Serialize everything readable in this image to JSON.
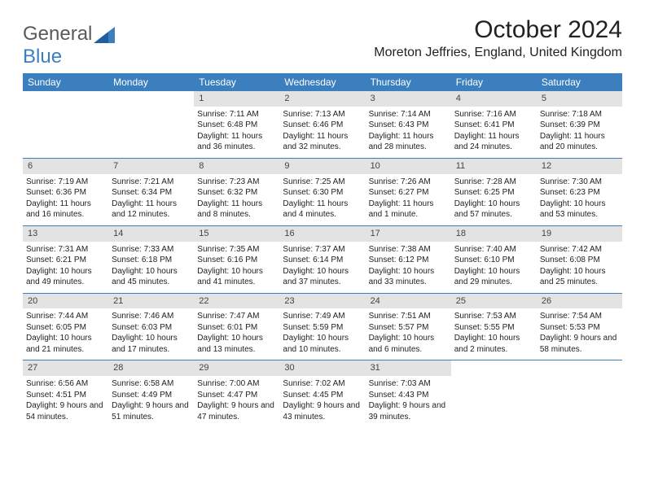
{
  "brand": {
    "part1": "General",
    "part2": "Blue"
  },
  "title": "October 2024",
  "location": "Moreton Jeffries, England, United Kingdom",
  "colors": {
    "header_bg": "#3b7fbf",
    "week_border": "#3b7fbf",
    "daynum_bg": "#e3e3e3",
    "text": "#222222",
    "logo_gray": "#5a5a5a",
    "logo_blue": "#3b7fbf"
  },
  "day_labels": [
    "Sunday",
    "Monday",
    "Tuesday",
    "Wednesday",
    "Thursday",
    "Friday",
    "Saturday"
  ],
  "weeks": [
    [
      null,
      null,
      {
        "n": "1",
        "sr": "Sunrise: 7:11 AM",
        "ss": "Sunset: 6:48 PM",
        "dl": "Daylight: 11 hours and 36 minutes."
      },
      {
        "n": "2",
        "sr": "Sunrise: 7:13 AM",
        "ss": "Sunset: 6:46 PM",
        "dl": "Daylight: 11 hours and 32 minutes."
      },
      {
        "n": "3",
        "sr": "Sunrise: 7:14 AM",
        "ss": "Sunset: 6:43 PM",
        "dl": "Daylight: 11 hours and 28 minutes."
      },
      {
        "n": "4",
        "sr": "Sunrise: 7:16 AM",
        "ss": "Sunset: 6:41 PM",
        "dl": "Daylight: 11 hours and 24 minutes."
      },
      {
        "n": "5",
        "sr": "Sunrise: 7:18 AM",
        "ss": "Sunset: 6:39 PM",
        "dl": "Daylight: 11 hours and 20 minutes."
      }
    ],
    [
      {
        "n": "6",
        "sr": "Sunrise: 7:19 AM",
        "ss": "Sunset: 6:36 PM",
        "dl": "Daylight: 11 hours and 16 minutes."
      },
      {
        "n": "7",
        "sr": "Sunrise: 7:21 AM",
        "ss": "Sunset: 6:34 PM",
        "dl": "Daylight: 11 hours and 12 minutes."
      },
      {
        "n": "8",
        "sr": "Sunrise: 7:23 AM",
        "ss": "Sunset: 6:32 PM",
        "dl": "Daylight: 11 hours and 8 minutes."
      },
      {
        "n": "9",
        "sr": "Sunrise: 7:25 AM",
        "ss": "Sunset: 6:30 PM",
        "dl": "Daylight: 11 hours and 4 minutes."
      },
      {
        "n": "10",
        "sr": "Sunrise: 7:26 AM",
        "ss": "Sunset: 6:27 PM",
        "dl": "Daylight: 11 hours and 1 minute."
      },
      {
        "n": "11",
        "sr": "Sunrise: 7:28 AM",
        "ss": "Sunset: 6:25 PM",
        "dl": "Daylight: 10 hours and 57 minutes."
      },
      {
        "n": "12",
        "sr": "Sunrise: 7:30 AM",
        "ss": "Sunset: 6:23 PM",
        "dl": "Daylight: 10 hours and 53 minutes."
      }
    ],
    [
      {
        "n": "13",
        "sr": "Sunrise: 7:31 AM",
        "ss": "Sunset: 6:21 PM",
        "dl": "Daylight: 10 hours and 49 minutes."
      },
      {
        "n": "14",
        "sr": "Sunrise: 7:33 AM",
        "ss": "Sunset: 6:18 PM",
        "dl": "Daylight: 10 hours and 45 minutes."
      },
      {
        "n": "15",
        "sr": "Sunrise: 7:35 AM",
        "ss": "Sunset: 6:16 PM",
        "dl": "Daylight: 10 hours and 41 minutes."
      },
      {
        "n": "16",
        "sr": "Sunrise: 7:37 AM",
        "ss": "Sunset: 6:14 PM",
        "dl": "Daylight: 10 hours and 37 minutes."
      },
      {
        "n": "17",
        "sr": "Sunrise: 7:38 AM",
        "ss": "Sunset: 6:12 PM",
        "dl": "Daylight: 10 hours and 33 minutes."
      },
      {
        "n": "18",
        "sr": "Sunrise: 7:40 AM",
        "ss": "Sunset: 6:10 PM",
        "dl": "Daylight: 10 hours and 29 minutes."
      },
      {
        "n": "19",
        "sr": "Sunrise: 7:42 AM",
        "ss": "Sunset: 6:08 PM",
        "dl": "Daylight: 10 hours and 25 minutes."
      }
    ],
    [
      {
        "n": "20",
        "sr": "Sunrise: 7:44 AM",
        "ss": "Sunset: 6:05 PM",
        "dl": "Daylight: 10 hours and 21 minutes."
      },
      {
        "n": "21",
        "sr": "Sunrise: 7:46 AM",
        "ss": "Sunset: 6:03 PM",
        "dl": "Daylight: 10 hours and 17 minutes."
      },
      {
        "n": "22",
        "sr": "Sunrise: 7:47 AM",
        "ss": "Sunset: 6:01 PM",
        "dl": "Daylight: 10 hours and 13 minutes."
      },
      {
        "n": "23",
        "sr": "Sunrise: 7:49 AM",
        "ss": "Sunset: 5:59 PM",
        "dl": "Daylight: 10 hours and 10 minutes."
      },
      {
        "n": "24",
        "sr": "Sunrise: 7:51 AM",
        "ss": "Sunset: 5:57 PM",
        "dl": "Daylight: 10 hours and 6 minutes."
      },
      {
        "n": "25",
        "sr": "Sunrise: 7:53 AM",
        "ss": "Sunset: 5:55 PM",
        "dl": "Daylight: 10 hours and 2 minutes."
      },
      {
        "n": "26",
        "sr": "Sunrise: 7:54 AM",
        "ss": "Sunset: 5:53 PM",
        "dl": "Daylight: 9 hours and 58 minutes."
      }
    ],
    [
      {
        "n": "27",
        "sr": "Sunrise: 6:56 AM",
        "ss": "Sunset: 4:51 PM",
        "dl": "Daylight: 9 hours and 54 minutes."
      },
      {
        "n": "28",
        "sr": "Sunrise: 6:58 AM",
        "ss": "Sunset: 4:49 PM",
        "dl": "Daylight: 9 hours and 51 minutes."
      },
      {
        "n": "29",
        "sr": "Sunrise: 7:00 AM",
        "ss": "Sunset: 4:47 PM",
        "dl": "Daylight: 9 hours and 47 minutes."
      },
      {
        "n": "30",
        "sr": "Sunrise: 7:02 AM",
        "ss": "Sunset: 4:45 PM",
        "dl": "Daylight: 9 hours and 43 minutes."
      },
      {
        "n": "31",
        "sr": "Sunrise: 7:03 AM",
        "ss": "Sunset: 4:43 PM",
        "dl": "Daylight: 9 hours and 39 minutes."
      },
      null,
      null
    ]
  ]
}
